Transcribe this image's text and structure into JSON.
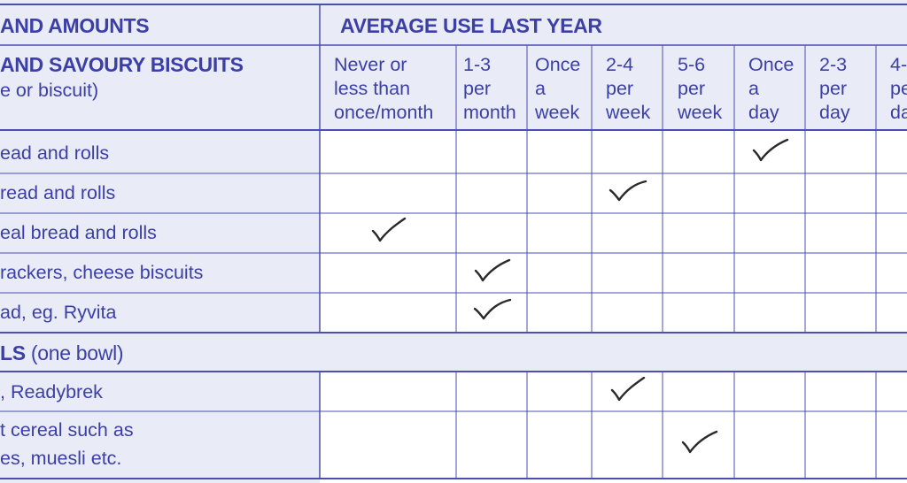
{
  "section_header": {
    "left": "AND AMOUNTS",
    "right": "AVERAGE USE LAST YEAR"
  },
  "group_bread": {
    "title": "AND SAVOURY BISCUITS",
    "subtitle": "e or biscuit)"
  },
  "frequency_columns": [
    "Never or\nless than\nonce/month",
    "1-3\nper\nmonth",
    "Once\na\nweek",
    "2-4\nper\nweek",
    "5-6\nper\nweek",
    "Once\na\nday",
    "2-3\nper\nday",
    "4-\npe\nda"
  ],
  "bread_rows": [
    {
      "label": "ead and rolls",
      "tick_col": 5
    },
    {
      "label": "read and rolls",
      "tick_col": 3
    },
    {
      "label": "eal bread and rolls",
      "tick_col": 0
    },
    {
      "label": "rackers, cheese biscuits",
      "tick_col": 1
    },
    {
      "label": "ad, eg. Ryvita",
      "tick_col": 1
    }
  ],
  "group_cereals": {
    "title": "LS",
    "note": " (one bowl)"
  },
  "cereal_rows": [
    {
      "label_lines": [
        ", Readybrek"
      ],
      "tick_col": 3
    },
    {
      "label_lines": [
        "t cereal such as",
        "es, muesli etc."
      ],
      "tick_col": 4
    }
  ],
  "colors": {
    "ink": "#3b3fa6",
    "shade": "#e9ebf6",
    "rule": "#4a4fb0",
    "tick": "#2a2a2a"
  }
}
